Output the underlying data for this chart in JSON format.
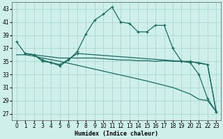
{
  "xlabel": "Humidex (Indice chaleur)",
  "background_color": "#cff0ea",
  "grid_color": "#aad8d0",
  "line_color": "#1a6b60",
  "xlim": [
    -0.5,
    23.5
  ],
  "ylim": [
    26,
    44
  ],
  "yticks": [
    27,
    29,
    31,
    33,
    35,
    37,
    39,
    41,
    43
  ],
  "xticks": [
    0,
    1,
    2,
    3,
    4,
    5,
    6,
    7,
    8,
    9,
    10,
    11,
    12,
    13,
    14,
    15,
    16,
    17,
    18,
    19,
    20,
    21,
    22,
    23
  ],
  "line1_x": [
    0,
    1,
    2,
    3,
    4,
    5,
    6,
    7,
    8,
    9,
    10,
    11,
    12,
    13,
    14,
    15,
    16,
    17,
    18,
    19,
    20,
    21,
    22,
    23
  ],
  "line1_y": [
    38.0,
    36.2,
    36.0,
    35.0,
    34.8,
    34.3,
    35.2,
    36.5,
    39.2,
    41.3,
    42.2,
    43.3,
    41.0,
    40.8,
    39.5,
    39.5,
    40.5,
    40.5,
    37.0,
    35.0,
    34.8,
    33.0,
    29.3,
    27.3
  ],
  "line2_x": [
    1,
    2,
    3,
    4,
    5,
    6,
    7,
    19,
    20,
    21,
    22,
    23
  ],
  "line2_y": [
    36.2,
    36.0,
    35.2,
    34.8,
    34.5,
    35.3,
    36.2,
    35.0,
    35.0,
    34.7,
    34.5,
    27.3
  ],
  "line3_x": [
    1,
    2,
    5,
    6,
    7,
    8,
    9,
    10,
    11,
    12,
    13,
    14,
    15,
    16,
    17,
    18,
    19,
    20,
    21,
    22,
    23
  ],
  "line3_y": [
    36.2,
    36.0,
    35.5,
    35.5,
    35.5,
    35.5,
    35.5,
    35.4,
    35.3,
    35.2,
    35.2,
    35.1,
    35.1,
    35.0,
    35.1,
    35.0,
    35.0,
    34.9,
    34.8,
    34.5,
    27.3
  ],
  "line4_x": [
    0,
    1,
    2,
    3,
    5,
    10,
    15,
    18,
    19,
    20,
    21,
    22,
    23
  ],
  "line4_y": [
    36.0,
    36.0,
    35.8,
    35.5,
    35.0,
    33.5,
    32.0,
    31.0,
    30.5,
    30.0,
    29.2,
    29.0,
    27.3
  ]
}
